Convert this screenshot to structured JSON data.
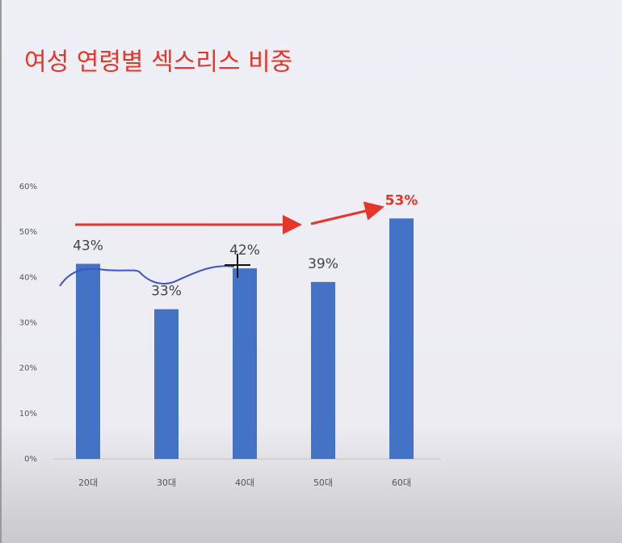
{
  "chart_data": {
    "type": "bar",
    "title": "여성 연령별 섹스리스 비중",
    "categories": [
      "20대",
      "30대",
      "40대",
      "50대",
      "60대"
    ],
    "values": [
      43,
      33,
      42,
      39,
      53
    ],
    "value_labels": [
      "43%",
      "33%",
      "42%",
      "39%",
      "53%"
    ],
    "value_label_colors": [
      "#444444",
      "#444444",
      "#444444",
      "#444444",
      "#e8352a"
    ],
    "color": "#4472c4",
    "ylim": [
      0,
      60
    ],
    "yticks": [
      {
        "value": 0,
        "label": "0%"
      },
      {
        "value": 10,
        "label": "10%"
      },
      {
        "value": 20,
        "label": "20%"
      },
      {
        "value": 30,
        "label": "30%"
      },
      {
        "value": 40,
        "label": "40%"
      },
      {
        "value": 50,
        "label": "50%"
      },
      {
        "value": 60,
        "label": "60%"
      }
    ],
    "grid": false
  }
}
